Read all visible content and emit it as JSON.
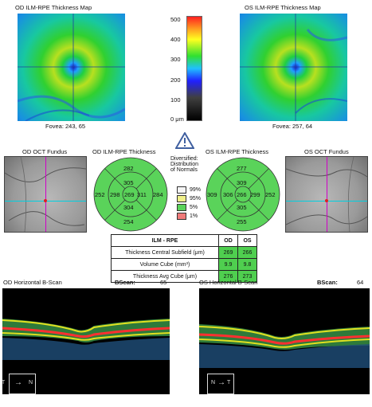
{
  "top": {
    "od_map_title": "OD ILM-RPE Thickness Map",
    "os_map_title": "OS ILM-RPE Thickness Map",
    "od_fovea": "Fovea: 243, 65",
    "os_fovea": "Fovea: 257, 64",
    "scale_ticks": [
      "500",
      "400",
      "300",
      "200",
      "100",
      "0 μm"
    ]
  },
  "middle": {
    "od_fundus_title": "OD OCT Fundus",
    "os_fundus_title": "OS OCT Fundus",
    "od_thickness_title": "OD ILM-RPE Thickness",
    "os_thickness_title": "OS ILM-RPE Thickness",
    "legend_title": [
      "Diversified:",
      "Distribution",
      "of Normals"
    ],
    "legend_items": [
      {
        "label": "99%",
        "color": "#f5f5f5"
      },
      {
        "label": "95%",
        "color": "#f0f08a"
      },
      {
        "label": "5%",
        "color": "#5ad35a"
      },
      {
        "label": "1%",
        "color": "#f07a7a"
      }
    ],
    "od_grid": {
      "center": "269",
      "inner_top": "305",
      "inner_left": "298",
      "inner_right": "311",
      "inner_bottom": "304",
      "outer_top": "282",
      "outer_left": "252",
      "outer_right": "284",
      "outer_bottom": "254"
    },
    "os_grid": {
      "center": "266",
      "inner_top": "309",
      "inner_left": "306",
      "inner_right": "299",
      "inner_bottom": "305",
      "outer_top": "277",
      "outer_left": "309",
      "outer_right": "252",
      "outer_bottom": "255"
    }
  },
  "table": {
    "header": [
      "ILM - RPE",
      "OD",
      "OS"
    ],
    "rows": [
      {
        "label": "Thickness Central Subfield (μm)",
        "od": "269",
        "os": "266"
      },
      {
        "label": "Volume Cube (mm³)",
        "od": "9.9",
        "os": "9.8"
      },
      {
        "label": "Thickness Avg Cube (μm)",
        "od": "276",
        "os": "273"
      }
    ]
  },
  "bottom": {
    "od_title": "OD Horizontal B-Scan",
    "os_title": "OS Horizontal B-Scan",
    "bscan_label": "BScan:",
    "od_bscan": "65",
    "os_bscan": "64",
    "od_orient_left": "T",
    "od_orient_right": "N",
    "os_orient_left": "N",
    "os_orient_right": "T"
  },
  "colors": {
    "normal_green": "#4fcf4f",
    "crosshair_v": "#d000c8",
    "crosshair_h": "#00d0e0"
  }
}
